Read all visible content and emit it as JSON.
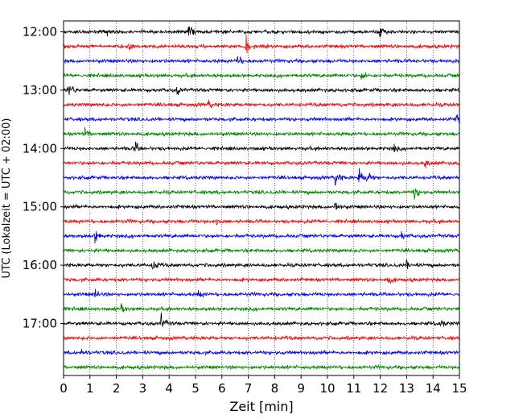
{
  "chart_data": {
    "type": "line",
    "title": "",
    "xlabel": "Zeit  [min]",
    "ylabel": "UTC (Lokalzeit = UTC + 02:00)",
    "xlim": [
      0,
      15
    ],
    "x_ticks": [
      "0",
      "1",
      "2",
      "3",
      "4",
      "5",
      "6",
      "7",
      "8",
      "9",
      "10",
      "11",
      "12",
      "13",
      "14",
      "15"
    ],
    "y_ticks": [
      {
        "label": "12:00",
        "hour_offset": 0
      },
      {
        "label": "13:00",
        "hour_offset": 1
      },
      {
        "label": "14:00",
        "hour_offset": 2
      },
      {
        "label": "15:00",
        "hour_offset": 3
      },
      {
        "label": "16:00",
        "hour_offset": 4
      },
      {
        "label": "17:00",
        "hour_offset": 5
      }
    ],
    "grid": "vertical-dotted",
    "trace_interval_min": 15,
    "start_time": "12:00",
    "color_cycle": [
      "#000000",
      "#ff0000",
      "#0000ff",
      "#008000"
    ],
    "traces": [
      {
        "start": "12:00",
        "events": [
          [
            1.6,
            6
          ],
          [
            4.75,
            10
          ],
          [
            12.0,
            10
          ]
        ]
      },
      {
        "start": "12:15",
        "events": [
          [
            2.5,
            7
          ],
          [
            6.9,
            12
          ]
        ]
      },
      {
        "start": "12:30",
        "events": [
          [
            6.6,
            7
          ]
        ]
      },
      {
        "start": "12:45",
        "events": [
          [
            11.3,
            6
          ]
        ]
      },
      {
        "start": "13:00",
        "events": [
          [
            0.2,
            9
          ],
          [
            4.3,
            5
          ]
        ]
      },
      {
        "start": "13:15",
        "events": [
          [
            5.5,
            4
          ]
        ]
      },
      {
        "start": "13:30",
        "events": [
          [
            14.9,
            7
          ]
        ]
      },
      {
        "start": "13:45",
        "events": [
          [
            0.8,
            6
          ]
        ]
      },
      {
        "start": "14:00",
        "events": [
          [
            2.7,
            8
          ],
          [
            12.5,
            5
          ]
        ]
      },
      {
        "start": "14:15",
        "events": [
          [
            13.7,
            5
          ]
        ]
      },
      {
        "start": "14:30",
        "events": [
          [
            10.3,
            9
          ],
          [
            11.2,
            10
          ],
          [
            11.5,
            10
          ]
        ]
      },
      {
        "start": "14:45",
        "events": [
          [
            13.3,
            9
          ]
        ]
      },
      {
        "start": "15:00",
        "events": [
          [
            10.3,
            8
          ]
        ]
      },
      {
        "start": "15:15",
        "events": [
          [
            5.8,
            4
          ]
        ]
      },
      {
        "start": "15:30",
        "events": [
          [
            1.2,
            8
          ],
          [
            12.8,
            4
          ]
        ]
      },
      {
        "start": "15:45",
        "events": []
      },
      {
        "start": "16:00",
        "events": [
          [
            3.4,
            9
          ],
          [
            13.0,
            4
          ]
        ]
      },
      {
        "start": "16:15",
        "events": [
          [
            12.3,
            5
          ]
        ]
      },
      {
        "start": "16:30",
        "events": [
          [
            1.2,
            5
          ],
          [
            5.1,
            4
          ]
        ]
      },
      {
        "start": "16:45",
        "events": [
          [
            2.2,
            4
          ]
        ]
      },
      {
        "start": "17:00",
        "events": [
          [
            3.7,
            10
          ],
          [
            14.3,
            4
          ]
        ]
      },
      {
        "start": "17:15",
        "events": []
      },
      {
        "start": "17:30",
        "events": [
          [
            0.7,
            4
          ]
        ]
      },
      {
        "start": "17:45",
        "events": []
      }
    ]
  }
}
